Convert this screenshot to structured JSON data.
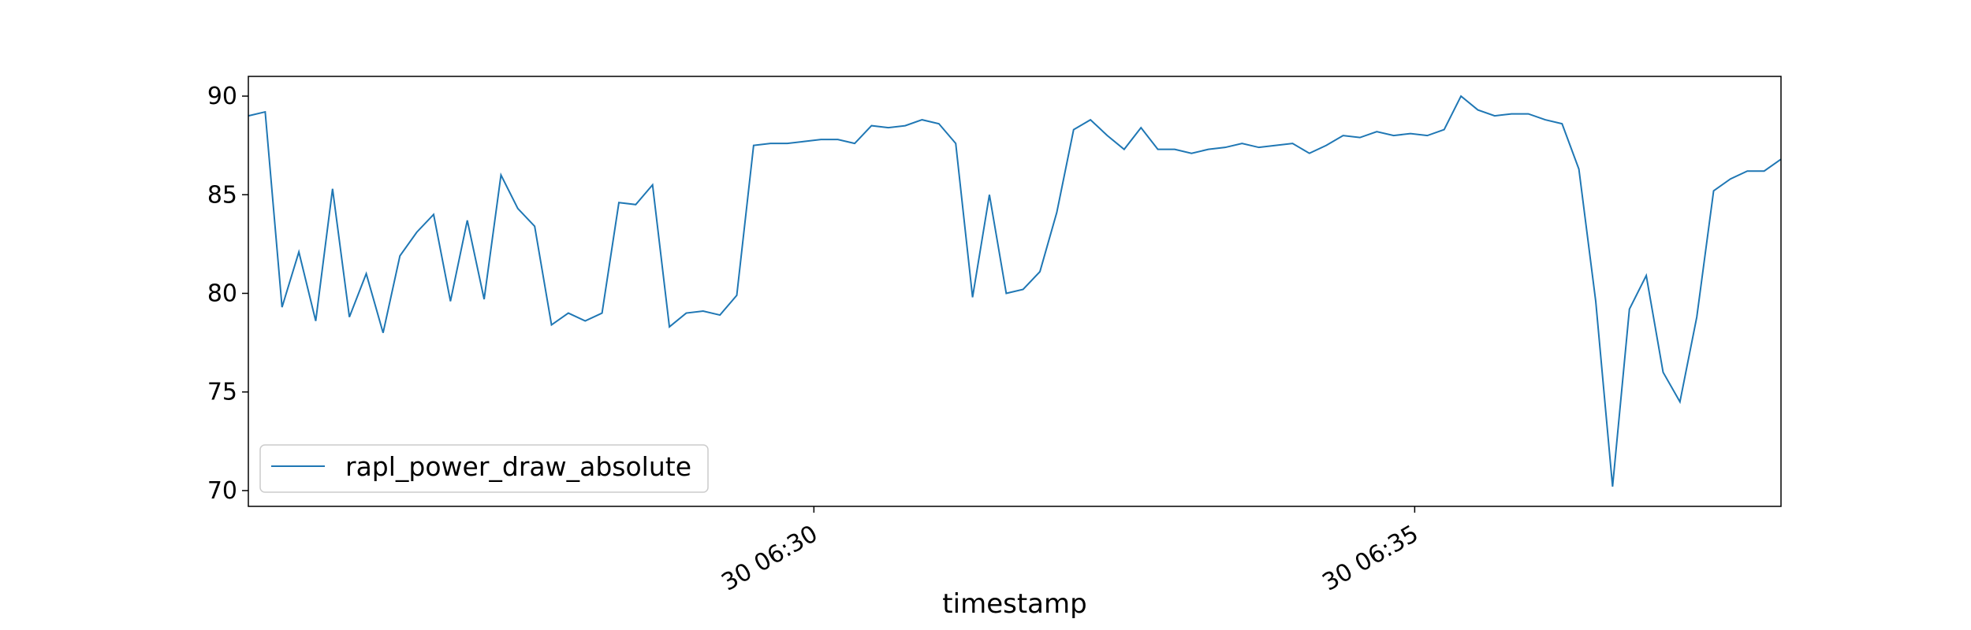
{
  "chart_data": {
    "type": "line",
    "title": "",
    "xlabel": "timestamp",
    "ylabel": "",
    "x_ticks": [
      "30 06:30",
      "30 06:35"
    ],
    "y_ticks": [
      70,
      75,
      80,
      85,
      90
    ],
    "ylim": [
      69.2,
      91
    ],
    "grid": false,
    "legend_position": "lower-left",
    "series": [
      {
        "name": "rapl_power_draw_absolute",
        "color": "#1f77b4",
        "values": [
          89.0,
          89.2,
          79.3,
          82.1,
          78.6,
          85.3,
          78.8,
          81.0,
          78.0,
          81.9,
          83.1,
          84.0,
          79.6,
          83.7,
          79.7,
          86.0,
          84.3,
          83.4,
          78.4,
          79.0,
          78.6,
          79.0,
          84.6,
          84.5,
          85.5,
          78.3,
          79.0,
          79.1,
          78.9,
          79.9,
          87.5,
          87.6,
          87.6,
          87.7,
          87.8,
          87.8,
          87.6,
          88.5,
          88.4,
          88.5,
          88.8,
          88.6,
          87.6,
          79.8,
          85.0,
          80.0,
          80.2,
          81.1,
          84.1,
          88.3,
          88.8,
          88.0,
          87.3,
          88.4,
          87.3,
          87.3,
          87.1,
          87.3,
          87.4,
          87.6,
          87.4,
          87.5,
          87.6,
          87.1,
          87.5,
          88.0,
          87.9,
          88.2,
          88.0,
          88.1,
          88.0,
          88.3,
          90.0,
          89.3,
          89.0,
          89.1,
          89.1,
          88.8,
          88.6,
          86.3,
          79.6,
          70.2,
          79.2,
          80.9,
          76.0,
          74.5,
          78.8,
          85.2,
          85.8,
          86.2,
          86.2,
          86.8
        ]
      }
    ]
  }
}
